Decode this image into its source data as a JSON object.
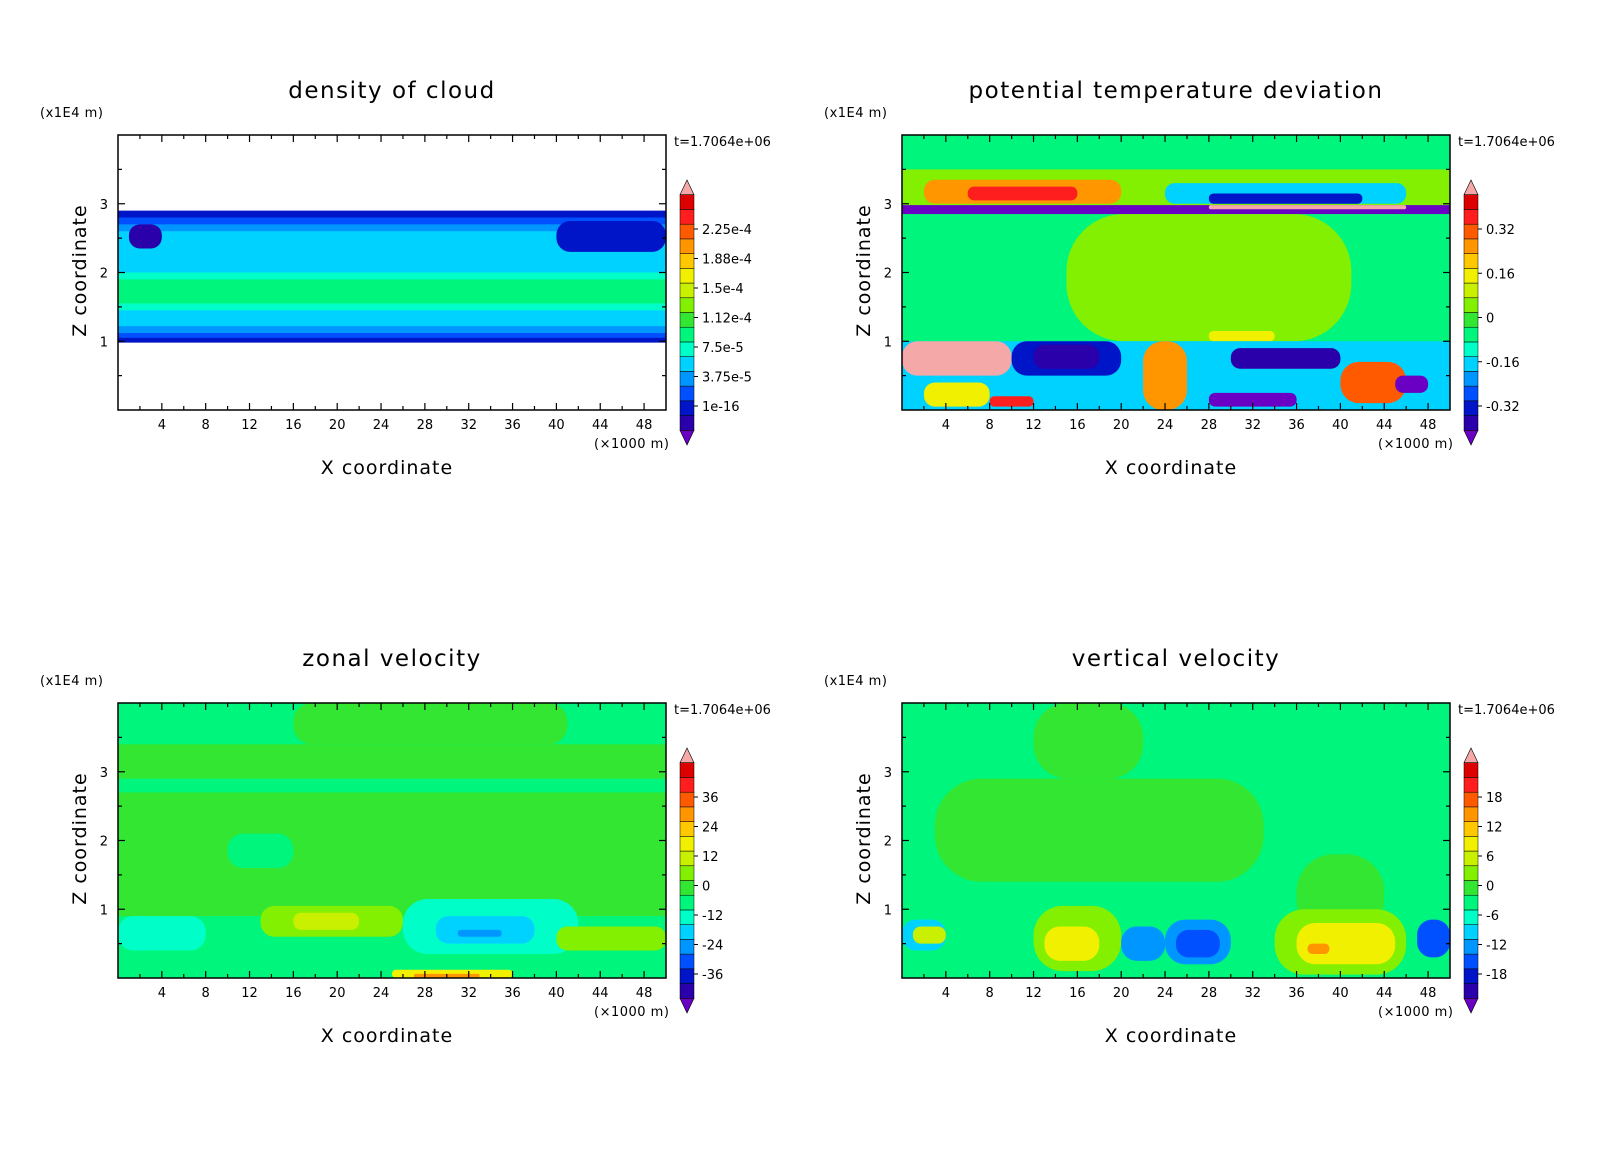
{
  "colors": {
    "palette": [
      "#6a00c4",
      "#2a00aa",
      "#0014c8",
      "#0050ff",
      "#0096ff",
      "#00d2ff",
      "#00ffc8",
      "#00f57d",
      "#32e632",
      "#82f000",
      "#c8f000",
      "#f0f000",
      "#ffc800",
      "#ff9600",
      "#ff5a00",
      "#ff1e1e",
      "#dc0000",
      "#f5a8a8"
    ],
    "background": "#ffffff",
    "axes": "#000000"
  },
  "chart_data": [
    {
      "type": "heatmap",
      "title": "density of cloud",
      "xlabel": "X coordinate",
      "ylabel": "Z coordinate",
      "x_unit": "(×1000 m)",
      "y_unit": "(x1E4 m)",
      "time_label": "t=1.7064e+06",
      "xlim": [
        0,
        50
      ],
      "ylim": [
        0,
        4
      ],
      "xticks": [
        "4",
        "8",
        "12",
        "16",
        "20",
        "24",
        "28",
        "32",
        "36",
        "40",
        "44",
        "48"
      ],
      "yticks": [
        "1",
        "2",
        "3"
      ],
      "colorbar_labels": [
        "2.25e-4",
        "1.88e-4",
        "1.5e-4",
        "1.12e-4",
        "7.5e-5",
        "3.75e-5",
        "1e-16"
      ],
      "background_color": "#ffffff",
      "regions": [
        {
          "x": [
            0,
            50
          ],
          "y": [
            0.98,
            2.9
          ],
          "color": "#0014c8"
        },
        {
          "x": [
            0,
            50
          ],
          "y": [
            1.05,
            2.8
          ],
          "color": "#0050ff"
        },
        {
          "x": [
            0,
            50
          ],
          "y": [
            1.12,
            2.7
          ],
          "color": "#0096ff"
        },
        {
          "x": [
            0,
            50
          ],
          "y": [
            1.22,
            2.6
          ],
          "color": "#00d2ff"
        },
        {
          "x": [
            0,
            50
          ],
          "y": [
            1.45,
            2.0
          ],
          "color": "#00ffc8"
        },
        {
          "x": [
            0,
            50
          ],
          "y": [
            1.55,
            1.9
          ],
          "color": "#00f57d"
        },
        {
          "x": [
            1,
            4
          ],
          "y": [
            2.35,
            2.7
          ],
          "color": "#2a00aa"
        },
        {
          "x": [
            40,
            50
          ],
          "y": [
            2.3,
            2.75
          ],
          "color": "#0014c8"
        }
      ]
    },
    {
      "type": "heatmap",
      "title": "potential temperature deviation",
      "xlabel": "X coordinate",
      "ylabel": "Z coordinate",
      "x_unit": "(×1000 m)",
      "y_unit": "(x1E4 m)",
      "time_label": "t=1.7064e+06",
      "xlim": [
        0,
        50
      ],
      "ylim": [
        0,
        4
      ],
      "xticks": [
        "4",
        "8",
        "12",
        "16",
        "20",
        "24",
        "28",
        "32",
        "36",
        "40",
        "44",
        "48"
      ],
      "yticks": [
        "1",
        "2",
        "3"
      ],
      "colorbar_labels": [
        "0.32",
        "0.16",
        "0",
        "-0.16",
        "-0.32"
      ],
      "background_color": "#00f57d",
      "regions": [
        {
          "x": [
            0,
            50
          ],
          "y": [
            2.85,
            3.5
          ],
          "color": "#82f000"
        },
        {
          "x": [
            2,
            20
          ],
          "y": [
            3.0,
            3.35
          ],
          "color": "#ff9600"
        },
        {
          "x": [
            6,
            16
          ],
          "y": [
            3.05,
            3.25
          ],
          "color": "#ff1e1e"
        },
        {
          "x": [
            24,
            46
          ],
          "y": [
            3.0,
            3.3
          ],
          "color": "#00d2ff"
        },
        {
          "x": [
            28,
            42
          ],
          "y": [
            3.0,
            3.15
          ],
          "color": "#0014c8"
        },
        {
          "x": [
            0,
            50
          ],
          "y": [
            2.85,
            2.98
          ],
          "color": "#6a00c4"
        },
        {
          "x": [
            28,
            46
          ],
          "y": [
            2.92,
            2.98
          ],
          "color": "#f5a8a8"
        },
        {
          "x": [
            15,
            41
          ],
          "y": [
            1.0,
            2.85
          ],
          "color": "#82f000"
        },
        {
          "x": [
            28,
            34
          ],
          "y": [
            1.0,
            1.15
          ],
          "color": "#f0f000"
        },
        {
          "x": [
            0,
            50
          ],
          "y": [
            0.0,
            1.0
          ],
          "color": "#00d2ff"
        },
        {
          "x": [
            0,
            10
          ],
          "y": [
            0.5,
            1.0
          ],
          "color": "#f5a8a8"
        },
        {
          "x": [
            10,
            20
          ],
          "y": [
            0.5,
            1.0
          ],
          "color": "#0014c8"
        },
        {
          "x": [
            12,
            18
          ],
          "y": [
            0.6,
            0.95
          ],
          "color": "#2a00aa"
        },
        {
          "x": [
            22,
            26
          ],
          "y": [
            0.0,
            1.0
          ],
          "color": "#ff9600"
        },
        {
          "x": [
            30,
            40
          ],
          "y": [
            0.6,
            0.9
          ],
          "color": "#2a00aa"
        },
        {
          "x": [
            28,
            36
          ],
          "y": [
            0.05,
            0.25
          ],
          "color": "#6a00c4"
        },
        {
          "x": [
            40,
            46
          ],
          "y": [
            0.1,
            0.7
          ],
          "color": "#ff5a00"
        },
        {
          "x": [
            45,
            48
          ],
          "y": [
            0.25,
            0.5
          ],
          "color": "#6a00c4"
        },
        {
          "x": [
            2,
            8
          ],
          "y": [
            0.05,
            0.4
          ],
          "color": "#f0f000"
        },
        {
          "x": [
            8,
            12
          ],
          "y": [
            0.05,
            0.2
          ],
          "color": "#ff1e1e"
        }
      ]
    },
    {
      "type": "heatmap",
      "title": "zonal velocity",
      "xlabel": "X coordinate",
      "ylabel": "Z coordinate",
      "x_unit": "(×1000 m)",
      "y_unit": "(x1E4 m)",
      "time_label": "t=1.7064e+06",
      "xlim": [
        0,
        50
      ],
      "ylim": [
        0,
        4
      ],
      "xticks": [
        "4",
        "8",
        "12",
        "16",
        "20",
        "24",
        "28",
        "32",
        "36",
        "40",
        "44",
        "48"
      ],
      "yticks": [
        "1",
        "2",
        "3"
      ],
      "colorbar_labels": [
        "36",
        "24",
        "12",
        "0",
        "-12",
        "-24",
        "-36"
      ],
      "background_color": "#00f57d",
      "regions": [
        {
          "x": [
            0,
            50
          ],
          "y": [
            0.9,
            3.4
          ],
          "color": "#32e632"
        },
        {
          "x": [
            16,
            41
          ],
          "y": [
            3.4,
            4.0
          ],
          "color": "#32e632"
        },
        {
          "x": [
            0,
            50
          ],
          "y": [
            2.7,
            2.9
          ],
          "color": "#00f57d"
        },
        {
          "x": [
            10,
            16
          ],
          "y": [
            1.6,
            2.1
          ],
          "color": "#00f57d"
        },
        {
          "x": [
            0,
            50
          ],
          "y": [
            0.0,
            0.9
          ],
          "color": "#00f57d"
        },
        {
          "x": [
            13,
            26
          ],
          "y": [
            0.6,
            1.05
          ],
          "color": "#82f000"
        },
        {
          "x": [
            16,
            22
          ],
          "y": [
            0.7,
            0.95
          ],
          "color": "#c8f000"
        },
        {
          "x": [
            26,
            42
          ],
          "y": [
            0.35,
            1.15
          ],
          "color": "#00ffc8"
        },
        {
          "x": [
            29,
            38
          ],
          "y": [
            0.5,
            0.9
          ],
          "color": "#00d2ff"
        },
        {
          "x": [
            31,
            35
          ],
          "y": [
            0.6,
            0.7
          ],
          "color": "#0096ff"
        },
        {
          "x": [
            40,
            50
          ],
          "y": [
            0.4,
            0.75
          ],
          "color": "#82f000"
        },
        {
          "x": [
            25,
            36
          ],
          "y": [
            0.0,
            0.12
          ],
          "color": "#f0f000"
        },
        {
          "x": [
            27,
            33
          ],
          "y": [
            0.0,
            0.06
          ],
          "color": "#ff9600"
        },
        {
          "x": [
            0,
            8
          ],
          "y": [
            0.4,
            0.9
          ],
          "color": "#00ffc8"
        }
      ]
    },
    {
      "type": "heatmap",
      "title": "vertical velocity",
      "xlabel": "X coordinate",
      "ylabel": "Z coordinate",
      "x_unit": "(×1000 m)",
      "y_unit": "(x1E4 m)",
      "time_label": "t=1.7064e+06",
      "xlim": [
        0,
        50
      ],
      "ylim": [
        0,
        4
      ],
      "xticks": [
        "4",
        "8",
        "12",
        "16",
        "20",
        "24",
        "28",
        "32",
        "36",
        "40",
        "44",
        "48"
      ],
      "yticks": [
        "1",
        "2",
        "3"
      ],
      "colorbar_labels": [
        "18",
        "12",
        "6",
        "0",
        "-6",
        "-12",
        "-18"
      ],
      "background_color": "#00f57d",
      "regions": [
        {
          "x": [
            3,
            33
          ],
          "y": [
            1.4,
            2.9
          ],
          "color": "#32e632"
        },
        {
          "x": [
            12,
            22
          ],
          "y": [
            2.9,
            4.0
          ],
          "color": "#32e632"
        },
        {
          "x": [
            36,
            44
          ],
          "y": [
            0.6,
            1.8
          ],
          "color": "#32e632"
        },
        {
          "x": [
            12,
            20
          ],
          "y": [
            0.1,
            1.05
          ],
          "color": "#82f000"
        },
        {
          "x": [
            13,
            18
          ],
          "y": [
            0.25,
            0.75
          ],
          "color": "#f0f000"
        },
        {
          "x": [
            34,
            46
          ],
          "y": [
            0.05,
            1.0
          ],
          "color": "#82f000"
        },
        {
          "x": [
            36,
            45
          ],
          "y": [
            0.2,
            0.8
          ],
          "color": "#f0f000"
        },
        {
          "x": [
            37,
            39
          ],
          "y": [
            0.35,
            0.5
          ],
          "color": "#ff9600"
        },
        {
          "x": [
            20,
            24
          ],
          "y": [
            0.25,
            0.75
          ],
          "color": "#0096ff"
        },
        {
          "x": [
            24,
            30
          ],
          "y": [
            0.2,
            0.85
          ],
          "color": "#0096ff"
        },
        {
          "x": [
            25,
            29
          ],
          "y": [
            0.3,
            0.7
          ],
          "color": "#0050ff"
        },
        {
          "x": [
            47,
            50
          ],
          "y": [
            0.3,
            0.85
          ],
          "color": "#0050ff"
        },
        {
          "x": [
            0,
            4
          ],
          "y": [
            0.4,
            0.85
          ],
          "color": "#00d2ff"
        },
        {
          "x": [
            1,
            4
          ],
          "y": [
            0.5,
            0.75
          ],
          "color": "#c8f000"
        }
      ]
    }
  ]
}
